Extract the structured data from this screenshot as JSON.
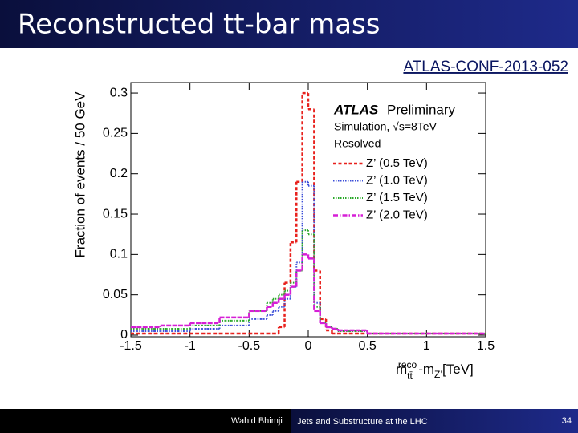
{
  "header": {
    "title": "Reconstructed tt-bar mass",
    "reference": "ATLAS-CONF-2013-052"
  },
  "footer": {
    "author": "Wahid Bhimji",
    "event": "Jets and Substructure at the LHC",
    "page": "34"
  },
  "chart_data": {
    "type": "step-histogram",
    "y_label": "Fraction of events / 50 GeV",
    "x_label_parts": [
      "m",
      "tt̄",
      "reco",
      "-m",
      "Z’",
      "[TeV]"
    ],
    "annotations": [
      "ATLAS",
      "Preliminary",
      "Simulation, √s=8TeV",
      "Resolved"
    ],
    "legend": "top-right",
    "xlim": [
      -1.5,
      1.5
    ],
    "ylim": [
      0,
      0.31
    ],
    "xticks": [
      -1.5,
      -1,
      -0.5,
      0,
      0.5,
      1,
      1.5
    ],
    "yticks": [
      0,
      0.05,
      0.1,
      0.15,
      0.2,
      0.25,
      0.3
    ],
    "bins": [
      -1.5,
      -1.45,
      -1.4,
      -1.35,
      -1.3,
      -1.25,
      -1.2,
      -1.15,
      -1.1,
      -1.05,
      -1,
      -0.95,
      -0.9,
      -0.85,
      -0.8,
      -0.75,
      -0.7,
      -0.65,
      -0.6,
      -0.55,
      -0.5,
      -0.45,
      -0.4,
      -0.35,
      -0.3,
      -0.25,
      -0.2,
      -0.15,
      -0.1,
      -0.05,
      0,
      0.05,
      0.1,
      0.15,
      0.2,
      0.25,
      0.3,
      0.35,
      0.4,
      0.45,
      0.5,
      0.55,
      0.6,
      0.65,
      0.7,
      0.75,
      0.8,
      0.85,
      0.9,
      0.95,
      1,
      1.05,
      1.1,
      1.15,
      1.2,
      1.25,
      1.3,
      1.35,
      1.4,
      1.45,
      1.5
    ],
    "series": [
      {
        "name": "Z’ (0.5 TeV)",
        "color": "#e8201c",
        "dash": "4,2.5",
        "width": 2.5,
        "values": [
          0.002,
          0.002,
          0.002,
          0.002,
          0.002,
          0.002,
          0.002,
          0.002,
          0.002,
          0.002,
          0.002,
          0.002,
          0.002,
          0.002,
          0.002,
          0.002,
          0.002,
          0.002,
          0.002,
          0.002,
          0.002,
          0.002,
          0.002,
          0.002,
          0.002,
          0.01,
          0.065,
          0.115,
          0.19,
          0.3,
          0.28,
          0.08,
          0.02,
          0.006,
          0.002,
          0.002,
          0.002,
          0.002,
          0.002,
          0.002,
          0.002,
          0.002,
          0.002,
          0.002,
          0.002,
          0.002,
          0.002,
          0.002,
          0.002,
          0.002,
          0.002,
          0.002,
          0.002,
          0.002,
          0.002,
          0.002,
          0.002,
          0.002,
          0.002,
          0.002
        ]
      },
      {
        "name": "Z’ (1.0 TeV)",
        "color": "#3c4fd8",
        "dash": "1.5,1.5",
        "width": 2,
        "values": [
          0.005,
          0.005,
          0.005,
          0.005,
          0.005,
          0.005,
          0.005,
          0.005,
          0.005,
          0.005,
          0.008,
          0.008,
          0.008,
          0.008,
          0.008,
          0.012,
          0.012,
          0.012,
          0.012,
          0.012,
          0.02,
          0.02,
          0.02,
          0.025,
          0.03,
          0.035,
          0.045,
          0.06,
          0.09,
          0.19,
          0.185,
          0.04,
          0.015,
          0.01,
          0.007,
          0.005,
          0.005,
          0.005,
          0.005,
          0.005,
          0.002,
          0.002,
          0.002,
          0.002,
          0.002,
          0.002,
          0.002,
          0.002,
          0.002,
          0.002,
          0.002,
          0.002,
          0.002,
          0.002,
          0.002,
          0.002,
          0.002,
          0.002,
          0.002,
          0.002
        ]
      },
      {
        "name": "Z’ (1.5 TeV)",
        "color": "#2aa82a",
        "dash": "1.5,1.5",
        "width": 2,
        "values": [
          0.008,
          0.008,
          0.008,
          0.008,
          0.008,
          0.008,
          0.008,
          0.008,
          0.008,
          0.008,
          0.012,
          0.012,
          0.012,
          0.012,
          0.012,
          0.018,
          0.018,
          0.018,
          0.018,
          0.018,
          0.03,
          0.03,
          0.03,
          0.04,
          0.045,
          0.05,
          0.055,
          0.065,
          0.08,
          0.13,
          0.125,
          0.035,
          0.015,
          0.01,
          0.008,
          0.005,
          0.005,
          0.005,
          0.005,
          0.005,
          0.002,
          0.002,
          0.002,
          0.002,
          0.002,
          0.002,
          0.002,
          0.002,
          0.002,
          0.002,
          0.002,
          0.002,
          0.002,
          0.002,
          0.002,
          0.002,
          0.002,
          0.002,
          0.002,
          0.002
        ]
      },
      {
        "name": "Z’ (2.0 TeV)",
        "color": "#d61fd6",
        "dash": "6,2,1.5,2",
        "width": 2.5,
        "values": [
          0.01,
          0.01,
          0.01,
          0.01,
          0.01,
          0.012,
          0.012,
          0.012,
          0.012,
          0.012,
          0.015,
          0.015,
          0.015,
          0.015,
          0.015,
          0.022,
          0.022,
          0.022,
          0.022,
          0.022,
          0.03,
          0.03,
          0.03,
          0.035,
          0.04,
          0.045,
          0.05,
          0.06,
          0.08,
          0.1,
          0.095,
          0.03,
          0.015,
          0.01,
          0.008,
          0.006,
          0.006,
          0.006,
          0.006,
          0.006,
          0.002,
          0.002,
          0.002,
          0.002,
          0.002,
          0.002,
          0.002,
          0.002,
          0.002,
          0.002,
          0.002,
          0.002,
          0.002,
          0.002,
          0.002,
          0.002,
          0.002,
          0.002,
          0.002,
          0.002
        ]
      }
    ]
  }
}
